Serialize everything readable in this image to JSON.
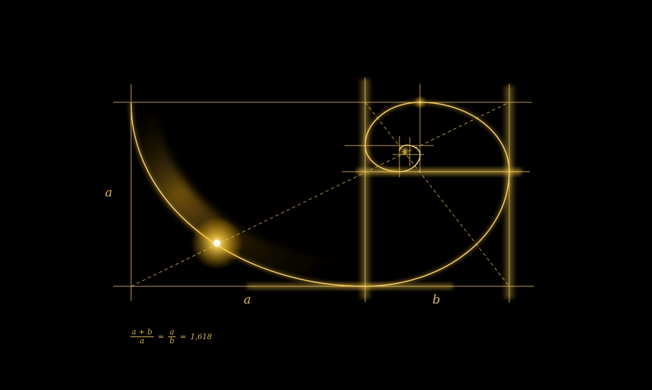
{
  "labels": {
    "side_a": "a",
    "bottom_a": "a",
    "bottom_b": "b"
  },
  "formula": {
    "left_numerator": "a + b",
    "left_denominator": "a",
    "equals_1": "=",
    "right_numerator": "a",
    "right_denominator": "b",
    "equals_2": "=",
    "value": "1,618"
  },
  "colors": {
    "background": "#000000",
    "gold_line": "#e8c66a",
    "gold_glow": "#ffd24a",
    "text": "#d9b45a"
  }
}
